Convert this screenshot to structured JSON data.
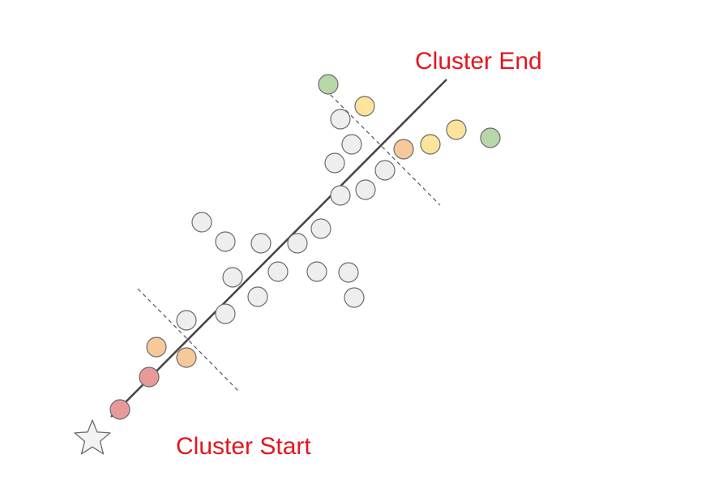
{
  "labels": {
    "cluster_end": "Cluster End",
    "cluster_start": "Cluster Start"
  },
  "colors": {
    "label": "#e3161e",
    "axis_line": "#444444",
    "dashed_line": "#555555",
    "node_stroke": "#6b6b6b",
    "grey_fill": "#eeeeee",
    "red_fill": "#e89a9a",
    "orange_fill": "#f6c99b",
    "yellow_fill": "#fde49c",
    "green_fill": "#b6d7a8",
    "star_fill": "#f3f3f3"
  },
  "icons": {
    "start_marker": "star-icon"
  }
}
